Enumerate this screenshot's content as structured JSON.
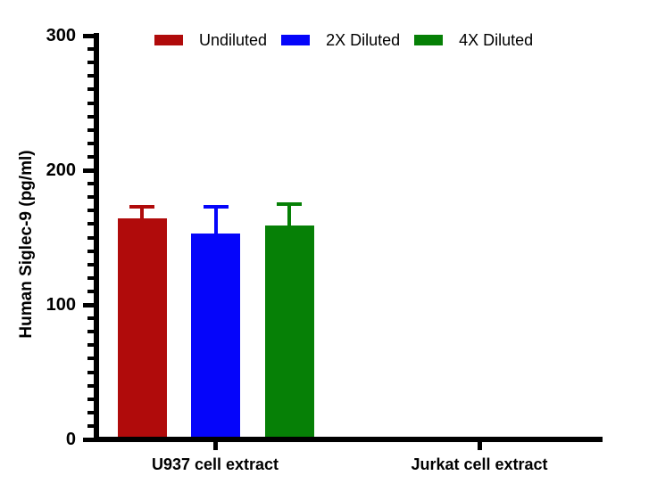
{
  "chart_data": {
    "type": "bar",
    "title": "",
    "xlabel": "",
    "ylabel": "Human Siglec-9 (pg/ml)",
    "ylim": [
      0,
      300
    ],
    "yticks_major": [
      0,
      100,
      200,
      300
    ],
    "ytick_minor_interval": 10,
    "grid": false,
    "legend_position": "top",
    "background_color": "#FFFFFF",
    "axis_color": "#000000",
    "categories": [
      "U937 cell extract",
      "Jurkat cell extract"
    ],
    "series": [
      {
        "name": "Undiluted",
        "color": "#B00B0B",
        "values": [
          164,
          0
        ],
        "error_plus": [
          9,
          0
        ]
      },
      {
        "name": "2X Diluted",
        "color": "#0505FA",
        "values": [
          153,
          0
        ],
        "error_plus": [
          20,
          0
        ]
      },
      {
        "name": "4X Diluted",
        "color": "#068006",
        "values": [
          159,
          0
        ],
        "error_plus": [
          16,
          0
        ]
      }
    ]
  }
}
